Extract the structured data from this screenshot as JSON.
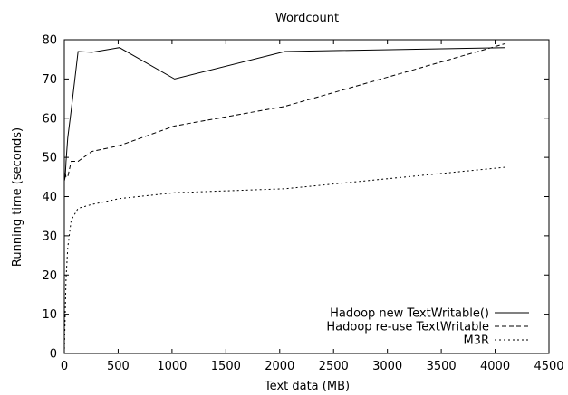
{
  "chart_data": {
    "type": "line",
    "title": "Wordcount",
    "xlabel": "Text data (MB)",
    "ylabel": "Running time (seconds)",
    "xlim": [
      0,
      4500
    ],
    "ylim": [
      0,
      80
    ],
    "x_ticks": [
      0,
      500,
      1000,
      1500,
      2000,
      2500,
      3000,
      3500,
      4000,
      4500
    ],
    "y_ticks": [
      0,
      10,
      20,
      30,
      40,
      50,
      60,
      70,
      80
    ],
    "grid": false,
    "legend_position": "bottom-right",
    "series": [
      {
        "name": "Hadoop new TextWritable()",
        "line_style": "solid",
        "color": "#000000",
        "x": [
          0,
          8,
          16,
          32,
          64,
          128,
          256,
          512,
          1024,
          2048,
          4096
        ],
        "y": [
          44,
          45,
          49,
          55,
          62,
          77,
          76.8,
          78,
          70,
          77,
          78
        ]
      },
      {
        "name": "Hadoop re-use TextWritable",
        "line_style": "dashed",
        "color": "#000000",
        "x": [
          0,
          8,
          16,
          32,
          64,
          128,
          256,
          512,
          1024,
          2048,
          4096
        ],
        "y": [
          44,
          46,
          45,
          45,
          49,
          49,
          51.5,
          53,
          58,
          63,
          79
        ]
      },
      {
        "name": "M3R",
        "line_style": "dotted",
        "color": "#000000",
        "x": [
          0,
          8,
          16,
          32,
          64,
          128,
          256,
          512,
          1024,
          2048,
          4096
        ],
        "y": [
          0,
          10,
          19,
          27,
          34,
          37,
          38,
          39.5,
          41,
          42,
          47.5
        ]
      }
    ]
  }
}
